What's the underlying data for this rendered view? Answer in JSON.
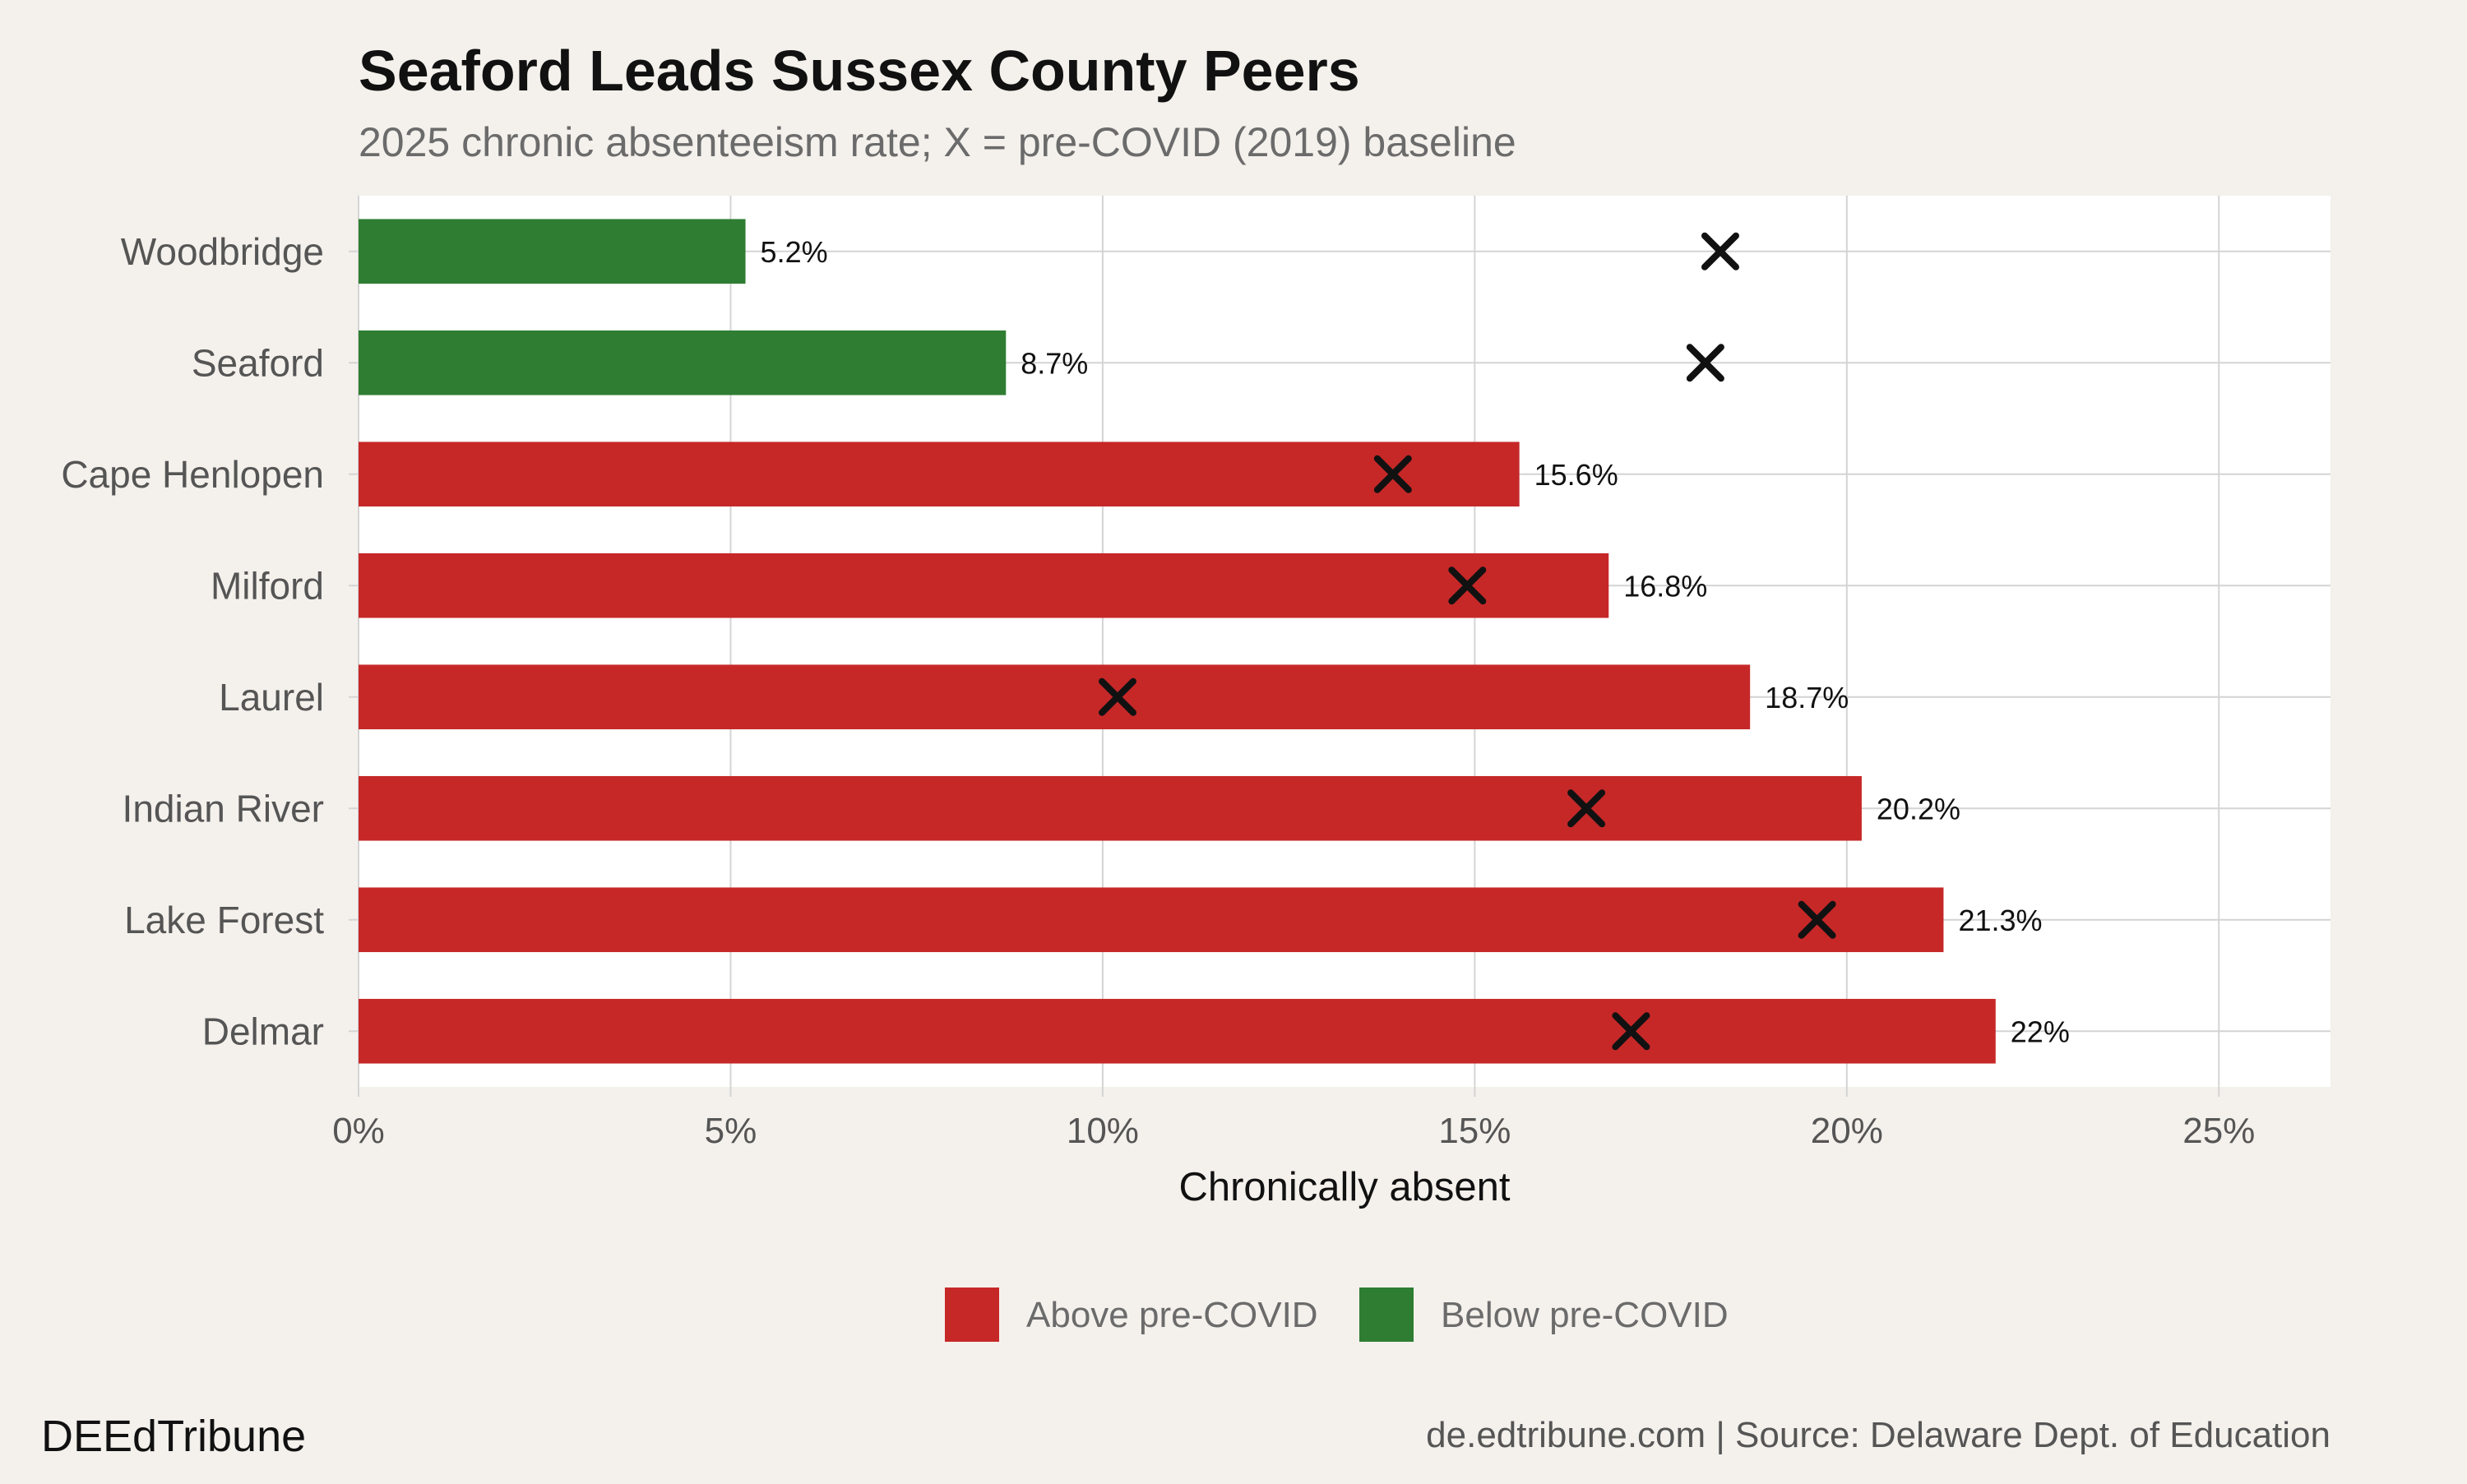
{
  "chart_data": {
    "type": "bar",
    "orientation": "horizontal",
    "title": "Seaford Leads Sussex County Peers",
    "subtitle": "2025 chronic absenteeism rate; X = pre-COVID (2019) baseline",
    "xlabel": "Chronically absent",
    "ylabel": "",
    "xlim": [
      0,
      26.5
    ],
    "x_ticks": [
      0,
      5,
      10,
      15,
      20,
      25
    ],
    "x_tick_labels": [
      "0%",
      "5%",
      "10%",
      "15%",
      "20%",
      "25%"
    ],
    "grid": true,
    "legend_position": "bottom",
    "categories": [
      "Woodbridge",
      "Seaford",
      "Cape Henlopen",
      "Milford",
      "Laurel",
      "Indian River",
      "Lake Forest",
      "Delmar"
    ],
    "values": [
      5.2,
      8.7,
      15.6,
      16.8,
      18.7,
      20.2,
      21.3,
      22.0
    ],
    "value_labels": [
      "5.2%",
      "8.7%",
      "15.6%",
      "16.8%",
      "18.7%",
      "20.2%",
      "21.3%",
      "22%"
    ],
    "baseline_2019": [
      18.3,
      18.1,
      13.9,
      14.9,
      10.2,
      16.5,
      19.6,
      17.1
    ],
    "status": [
      "below",
      "below",
      "above",
      "above",
      "above",
      "above",
      "above",
      "above"
    ],
    "legend": [
      {
        "key": "above",
        "label": "Above pre-COVID",
        "color": "#c62828"
      },
      {
        "key": "below",
        "label": "Below pre-COVID",
        "color": "#2e7d32"
      }
    ]
  },
  "colors": {
    "above": "#c62828",
    "below": "#2e7d32",
    "panel": "#ffffff",
    "background": "#f4f1ec",
    "grid": "#d4d4d4",
    "marker": "#111111"
  },
  "footer": {
    "brand": "DEEdTribune",
    "source": "de.edtribune.com | Source: Delaware Dept. of Education"
  }
}
